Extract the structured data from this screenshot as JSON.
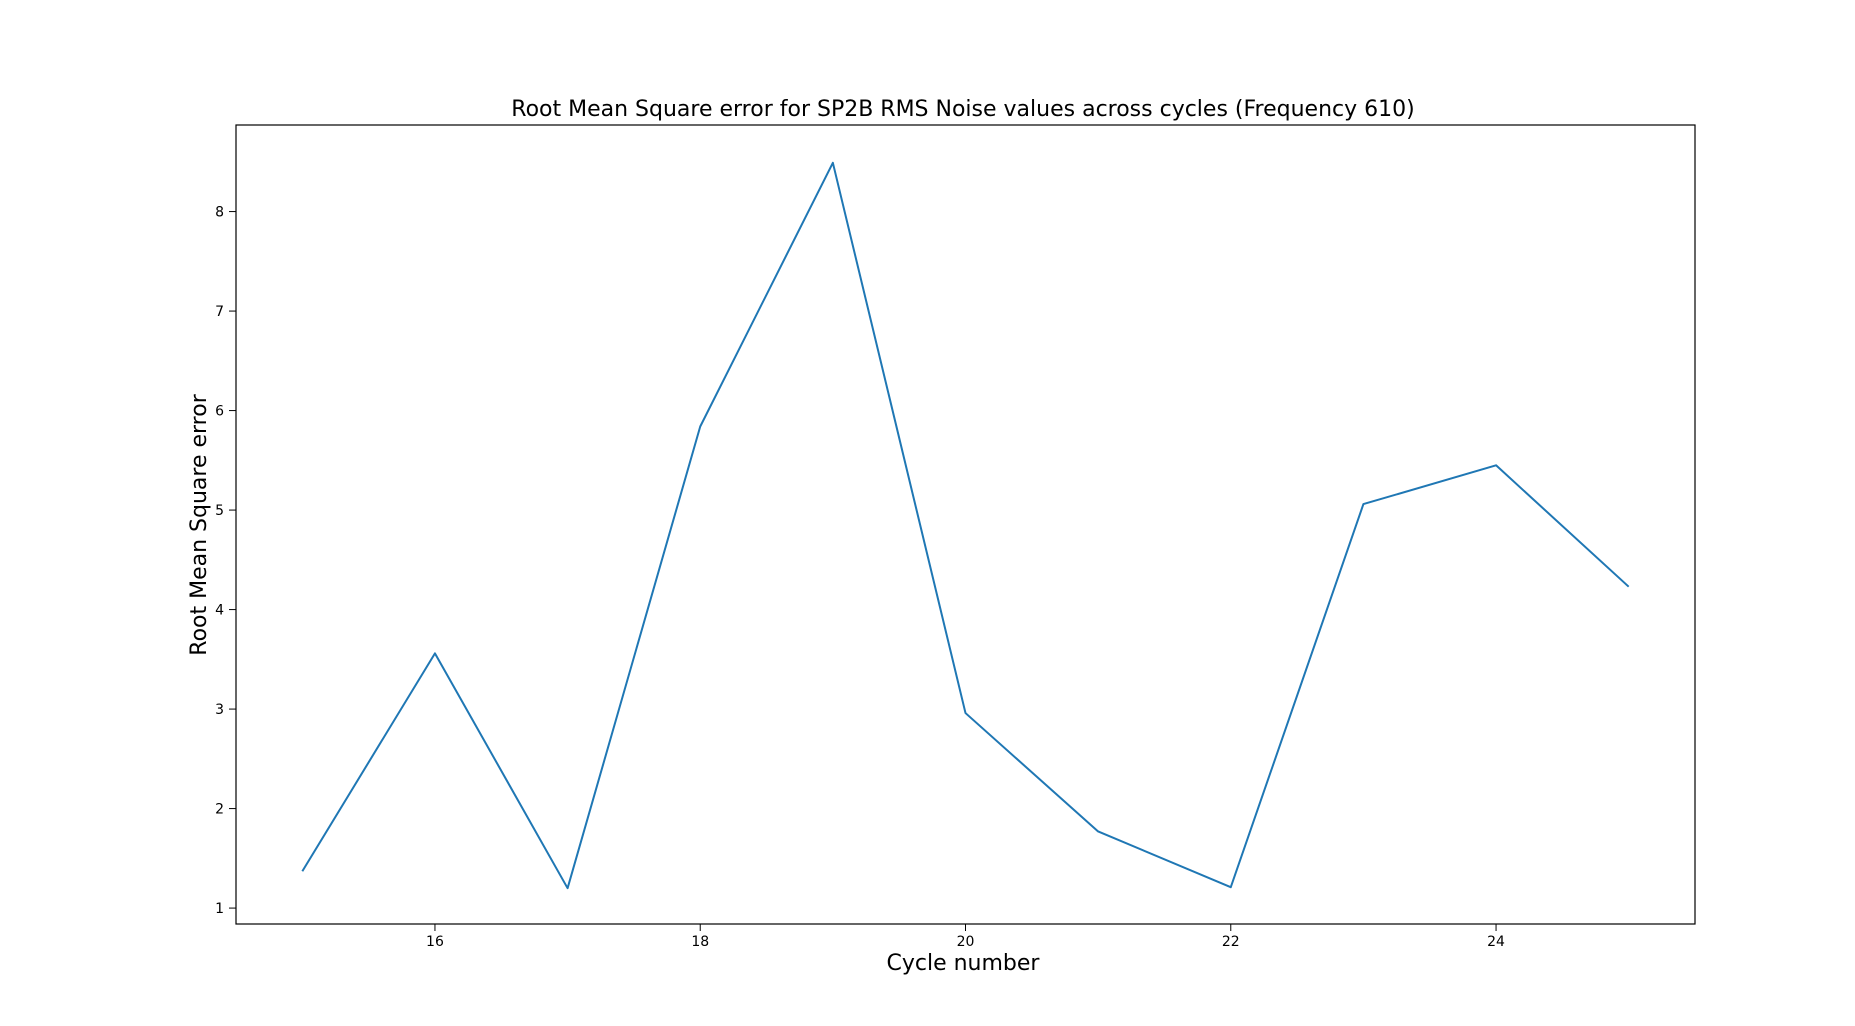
{
  "chart_data": {
    "type": "line",
    "title": "Root Mean Square error for SP2B RMS Noise values across cycles (Frequency 610)",
    "xlabel": "Cycle number",
    "ylabel": "Root Mean Square error",
    "xlim": [
      14.5,
      25.5
    ],
    "ylim": [
      0.84,
      8.87
    ],
    "xticks": [
      16,
      18,
      20,
      22,
      24
    ],
    "yticks": [
      1,
      2,
      3,
      4,
      5,
      6,
      7,
      8
    ],
    "grid": false,
    "legend": "none",
    "series": [
      {
        "color": "#1f77b4",
        "x": [
          15,
          16,
          17,
          18,
          19,
          20,
          21,
          22,
          23,
          24,
          25
        ],
        "y": [
          1.37,
          3.56,
          1.2,
          5.84,
          8.49,
          2.96,
          1.77,
          1.21,
          5.06,
          5.45,
          4.23
        ]
      }
    ]
  }
}
